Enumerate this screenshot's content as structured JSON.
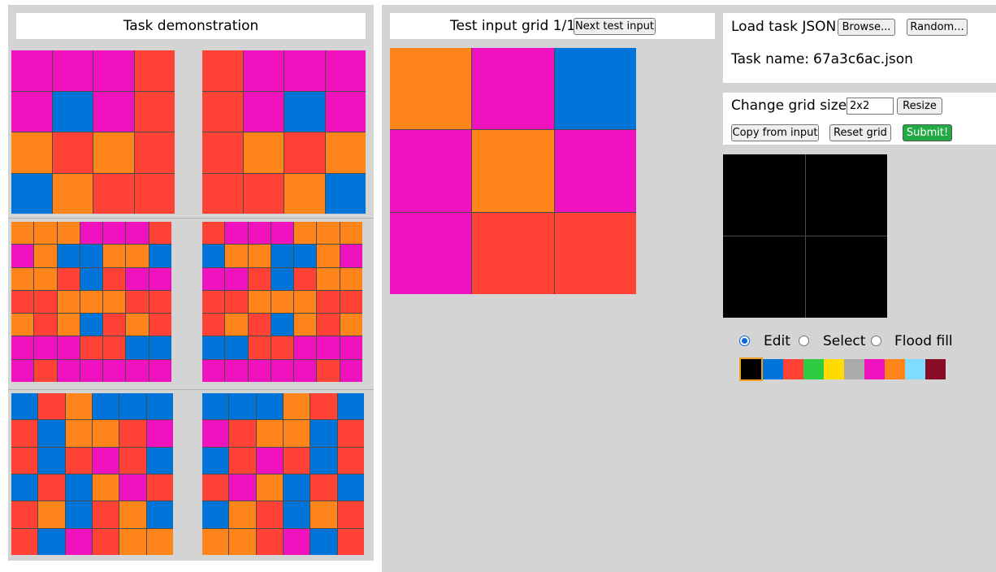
{
  "palette": {
    "0": "#000000",
    "1": "#0074d9",
    "2": "#ff4136",
    "3": "#2ecc40",
    "4": "#ffdc00",
    "5": "#aaaaaa",
    "6": "#f012be",
    "7": "#ff851b",
    "8": "#7fdbff",
    "9": "#870c25"
  },
  "demo": {
    "title": "Task demonstration",
    "pairs": [
      {
        "input": [
          [
            6,
            6,
            6,
            2
          ],
          [
            6,
            1,
            6,
            2
          ],
          [
            7,
            2,
            7,
            2
          ],
          [
            1,
            7,
            2,
            2
          ]
        ],
        "output": [
          [
            2,
            6,
            6,
            6
          ],
          [
            2,
            6,
            1,
            6
          ],
          [
            2,
            7,
            2,
            7
          ],
          [
            2,
            2,
            7,
            1
          ]
        ]
      },
      {
        "input": [
          [
            7,
            7,
            7,
            6,
            6,
            6,
            2
          ],
          [
            6,
            7,
            1,
            1,
            7,
            7,
            1
          ],
          [
            7,
            7,
            2,
            1,
            2,
            6,
            6
          ],
          [
            2,
            2,
            7,
            7,
            7,
            2,
            2
          ],
          [
            7,
            2,
            7,
            1,
            2,
            7,
            2
          ],
          [
            6,
            6,
            6,
            2,
            2,
            1,
            1
          ],
          [
            6,
            2,
            6,
            6,
            6,
            6,
            6
          ]
        ],
        "output": [
          [
            2,
            6,
            6,
            6,
            7,
            7,
            7
          ],
          [
            1,
            7,
            7,
            1,
            1,
            7,
            6
          ],
          [
            6,
            6,
            2,
            1,
            2,
            7,
            7
          ],
          [
            2,
            2,
            7,
            7,
            7,
            2,
            2
          ],
          [
            2,
            7,
            2,
            1,
            7,
            2,
            7
          ],
          [
            1,
            1,
            2,
            2,
            6,
            6,
            6
          ],
          [
            6,
            6,
            6,
            6,
            6,
            2,
            6
          ]
        ]
      },
      {
        "input": [
          [
            1,
            2,
            7,
            1,
            1,
            1
          ],
          [
            2,
            1,
            7,
            7,
            2,
            6
          ],
          [
            2,
            1,
            2,
            6,
            2,
            1
          ],
          [
            1,
            2,
            1,
            7,
            6,
            2
          ],
          [
            2,
            7,
            1,
            2,
            7,
            1
          ],
          [
            2,
            1,
            6,
            2,
            7,
            7
          ]
        ],
        "output": [
          [
            1,
            1,
            1,
            7,
            2,
            1
          ],
          [
            6,
            2,
            7,
            7,
            1,
            2
          ],
          [
            1,
            2,
            6,
            2,
            1,
            2
          ],
          [
            2,
            6,
            7,
            1,
            2,
            1
          ],
          [
            1,
            7,
            2,
            1,
            7,
            2
          ],
          [
            7,
            7,
            2,
            6,
            1,
            2
          ]
        ]
      }
    ]
  },
  "test": {
    "header_label": "Test input grid 1/1",
    "next_button": "Next test input",
    "input": [
      [
        7,
        6,
        1
      ],
      [
        6,
        7,
        6
      ],
      [
        6,
        2,
        2
      ]
    ]
  },
  "controls": {
    "load_label": "Load task JSON:",
    "browse_button": "Browse...",
    "random_button": "Random...",
    "task_name_label": "Task name:",
    "task_name_value": "67a3c6ac.json",
    "change_size_label": "Change grid size:",
    "size_value": "2x2",
    "resize_button": "Resize",
    "copy_button": "Copy from input",
    "reset_button": "Reset grid",
    "submit_button": "Submit!",
    "output": [
      [
        0,
        0
      ],
      [
        0,
        0
      ]
    ],
    "modes": [
      {
        "label": "Edit",
        "selected": true
      },
      {
        "label": "Select",
        "selected": false
      },
      {
        "label": "Flood fill",
        "selected": false
      }
    ],
    "selected_color": 0,
    "swatches": [
      0,
      1,
      2,
      3,
      4,
      5,
      6,
      7,
      8,
      9
    ]
  }
}
